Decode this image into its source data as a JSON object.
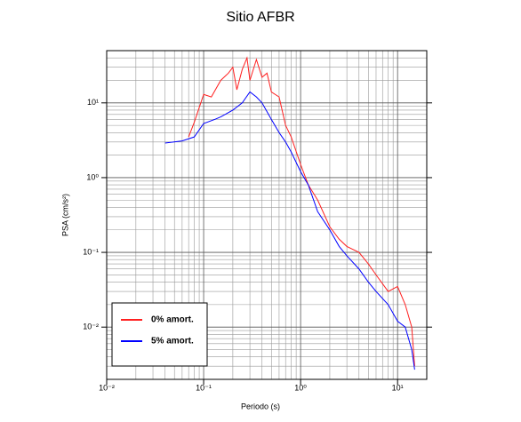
{
  "chart_data": {
    "type": "line",
    "title": "Sitio AFBR",
    "x_label": "Periodo (s)",
    "y_label": "PSA (cm/s²)",
    "log_x": true,
    "log_y": true,
    "grid": true,
    "minor_grid": true,
    "legend": "lower left",
    "xlim": [
      0.01,
      20
    ],
    "ylim": [
      0.002,
      50
    ],
    "xticks": [
      {
        "value": 0.01,
        "label": "10⁻²"
      },
      {
        "value": 0.1,
        "label": "10⁻¹"
      },
      {
        "value": 1,
        "label": "10⁰"
      },
      {
        "value": 10,
        "label": "10¹"
      }
    ],
    "yticks": [
      {
        "value": 0.01,
        "label": "10⁻²"
      },
      {
        "value": 0.1,
        "label": "10⁻¹"
      },
      {
        "value": 1,
        "label": "10⁰"
      },
      {
        "value": 10,
        "label": "10¹"
      }
    ],
    "series": [
      {
        "name": "0% amort.",
        "color": "#ff2020",
        "x": [
          0.07,
          0.08,
          0.1,
          0.12,
          0.15,
          0.18,
          0.2,
          0.22,
          0.25,
          0.28,
          0.3,
          0.35,
          0.4,
          0.45,
          0.5,
          0.6,
          0.7,
          0.8,
          1.0,
          1.2,
          1.5,
          2,
          2.5,
          3,
          4,
          5,
          6,
          8,
          10,
          12,
          14,
          15
        ],
        "values": [
          3.5,
          5.5,
          13,
          12,
          20,
          25,
          30,
          15,
          28,
          40,
          20,
          38,
          22,
          25,
          14,
          12,
          5,
          3.5,
          1.5,
          0.8,
          0.5,
          0.22,
          0.15,
          0.12,
          0.1,
          0.07,
          0.05,
          0.03,
          0.035,
          0.02,
          0.01,
          0.003
        ]
      },
      {
        "name": "5% amort.",
        "color": "#0000ff",
        "x": [
          0.04,
          0.06,
          0.08,
          0.1,
          0.13,
          0.15,
          0.2,
          0.25,
          0.3,
          0.35,
          0.4,
          0.5,
          0.6,
          0.7,
          0.8,
          1.0,
          1.2,
          1.5,
          2,
          2.5,
          3,
          4,
          5,
          6,
          8,
          10,
          12,
          14,
          15
        ],
        "values": [
          2.9,
          3.1,
          3.5,
          5.3,
          6,
          6.5,
          8,
          10,
          14,
          12,
          10,
          6,
          4,
          3,
          2.2,
          1.2,
          0.8,
          0.35,
          0.2,
          0.12,
          0.09,
          0.06,
          0.04,
          0.03,
          0.02,
          0.012,
          0.01,
          0.005,
          0.0027
        ]
      }
    ]
  }
}
